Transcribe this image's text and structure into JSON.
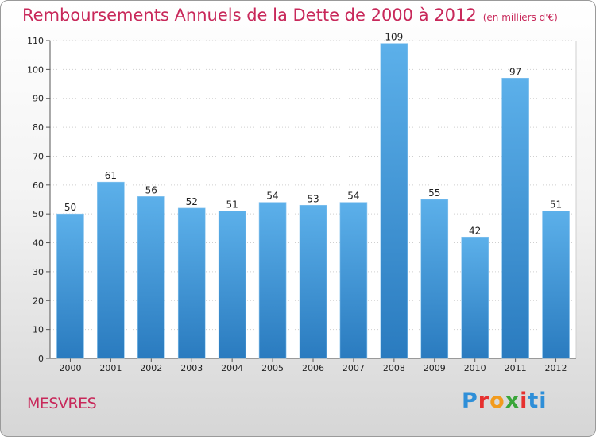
{
  "header": {
    "title": "Remboursements Annuels de la Dette de 2000 à 2012",
    "unit": "(en milliers d'€)"
  },
  "footer": {
    "commune": "MESVRES",
    "logo": "Proxiti"
  },
  "colors": {
    "title": "#c8285a",
    "bar_light": "#5aaee8",
    "bar_dark": "#2a7dc0"
  },
  "chart_data": {
    "type": "bar",
    "categories": [
      "2000",
      "2001",
      "2002",
      "2003",
      "2004",
      "2005",
      "2006",
      "2007",
      "2008",
      "2009",
      "2010",
      "2011",
      "2012"
    ],
    "values": [
      50,
      61,
      56,
      52,
      51,
      54,
      53,
      54,
      109,
      55,
      42,
      97,
      51
    ],
    "yticks": [
      0,
      10,
      20,
      30,
      40,
      50,
      60,
      70,
      80,
      90,
      100,
      110
    ],
    "ylim": [
      0,
      110
    ],
    "grid": true,
    "title": "Remboursements Annuels de la Dette de 2000 à 2012",
    "subtitle": "(en milliers d'€)",
    "xlabel": "",
    "ylabel": ""
  }
}
